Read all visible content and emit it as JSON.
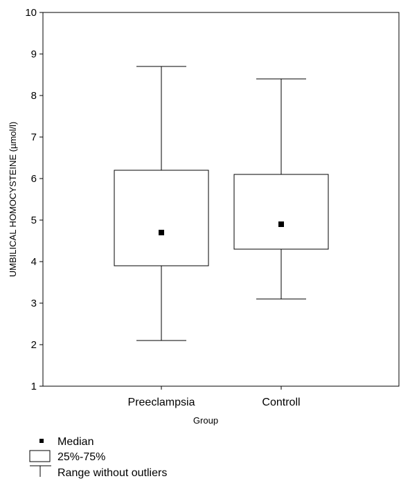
{
  "chart_data": {
    "type": "box",
    "xlabel": "Group",
    "ylabel": "UMBILICAL HOMOCYSTEINE (µmol/l)",
    "ylim": [
      1,
      10
    ],
    "yticks": [
      1,
      2,
      3,
      4,
      5,
      6,
      7,
      8,
      9,
      10
    ],
    "grid": false,
    "categories": [
      "Preeclampsia",
      "Controll"
    ],
    "boxes": [
      {
        "category": "Preeclampsia",
        "min": 2.1,
        "q1": 3.9,
        "median": 4.7,
        "q3": 6.2,
        "max": 8.7
      },
      {
        "category": "Controll",
        "min": 3.1,
        "q1": 4.3,
        "median": 4.9,
        "q3": 6.1,
        "max": 8.4
      }
    ],
    "legend": {
      "placement": "bottom-left",
      "items": [
        {
          "symbol": "square-marker",
          "label": "Median"
        },
        {
          "symbol": "box",
          "label": "25%-75%"
        },
        {
          "symbol": "whisker",
          "label": "Range without outliers"
        }
      ]
    }
  }
}
